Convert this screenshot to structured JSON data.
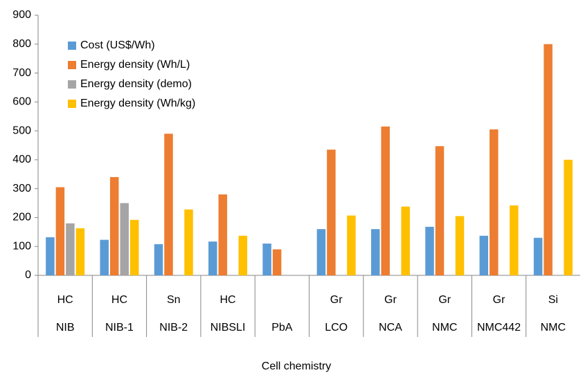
{
  "chart_data": {
    "type": "bar",
    "x_label": "Cell chemistry",
    "categories": [
      "NIB",
      "NIB-1",
      "NIB-2",
      "NIBSLI",
      "PbA",
      "LCO",
      "NCA",
      "NMC",
      "NMC442",
      "NMC"
    ],
    "subcategories": [
      "HC",
      "HC",
      "Sn",
      "HC",
      null,
      "Gr",
      "Gr",
      "Gr",
      "Gr",
      "Si"
    ],
    "series": [
      {
        "name": "Cost (US$/Wh)",
        "color": "#5b9bd5",
        "values": [
          132,
          123,
          108,
          117,
          110,
          160,
          160,
          168,
          137,
          130
        ]
      },
      {
        "name": "Energy density (Wh/L)",
        "color": "#ed7d31",
        "values": [
          305,
          340,
          490,
          280,
          90,
          435,
          515,
          447,
          505,
          800
        ]
      },
      {
        "name": "Energy density (demo)",
        "color": "#a5a5a5",
        "values": [
          180,
          250,
          null,
          null,
          null,
          null,
          null,
          null,
          null,
          null
        ]
      },
      {
        "name": "Energy density (Wh/kg)",
        "color": "#ffc000",
        "values": [
          163,
          192,
          228,
          137,
          null,
          207,
          238,
          205,
          242,
          400
        ]
      }
    ],
    "ylim": [
      0,
      900
    ],
    "yticks": [
      0,
      100,
      200,
      300,
      400,
      500,
      600,
      700,
      800,
      900
    ],
    "grid": false,
    "legend": "upper left"
  }
}
